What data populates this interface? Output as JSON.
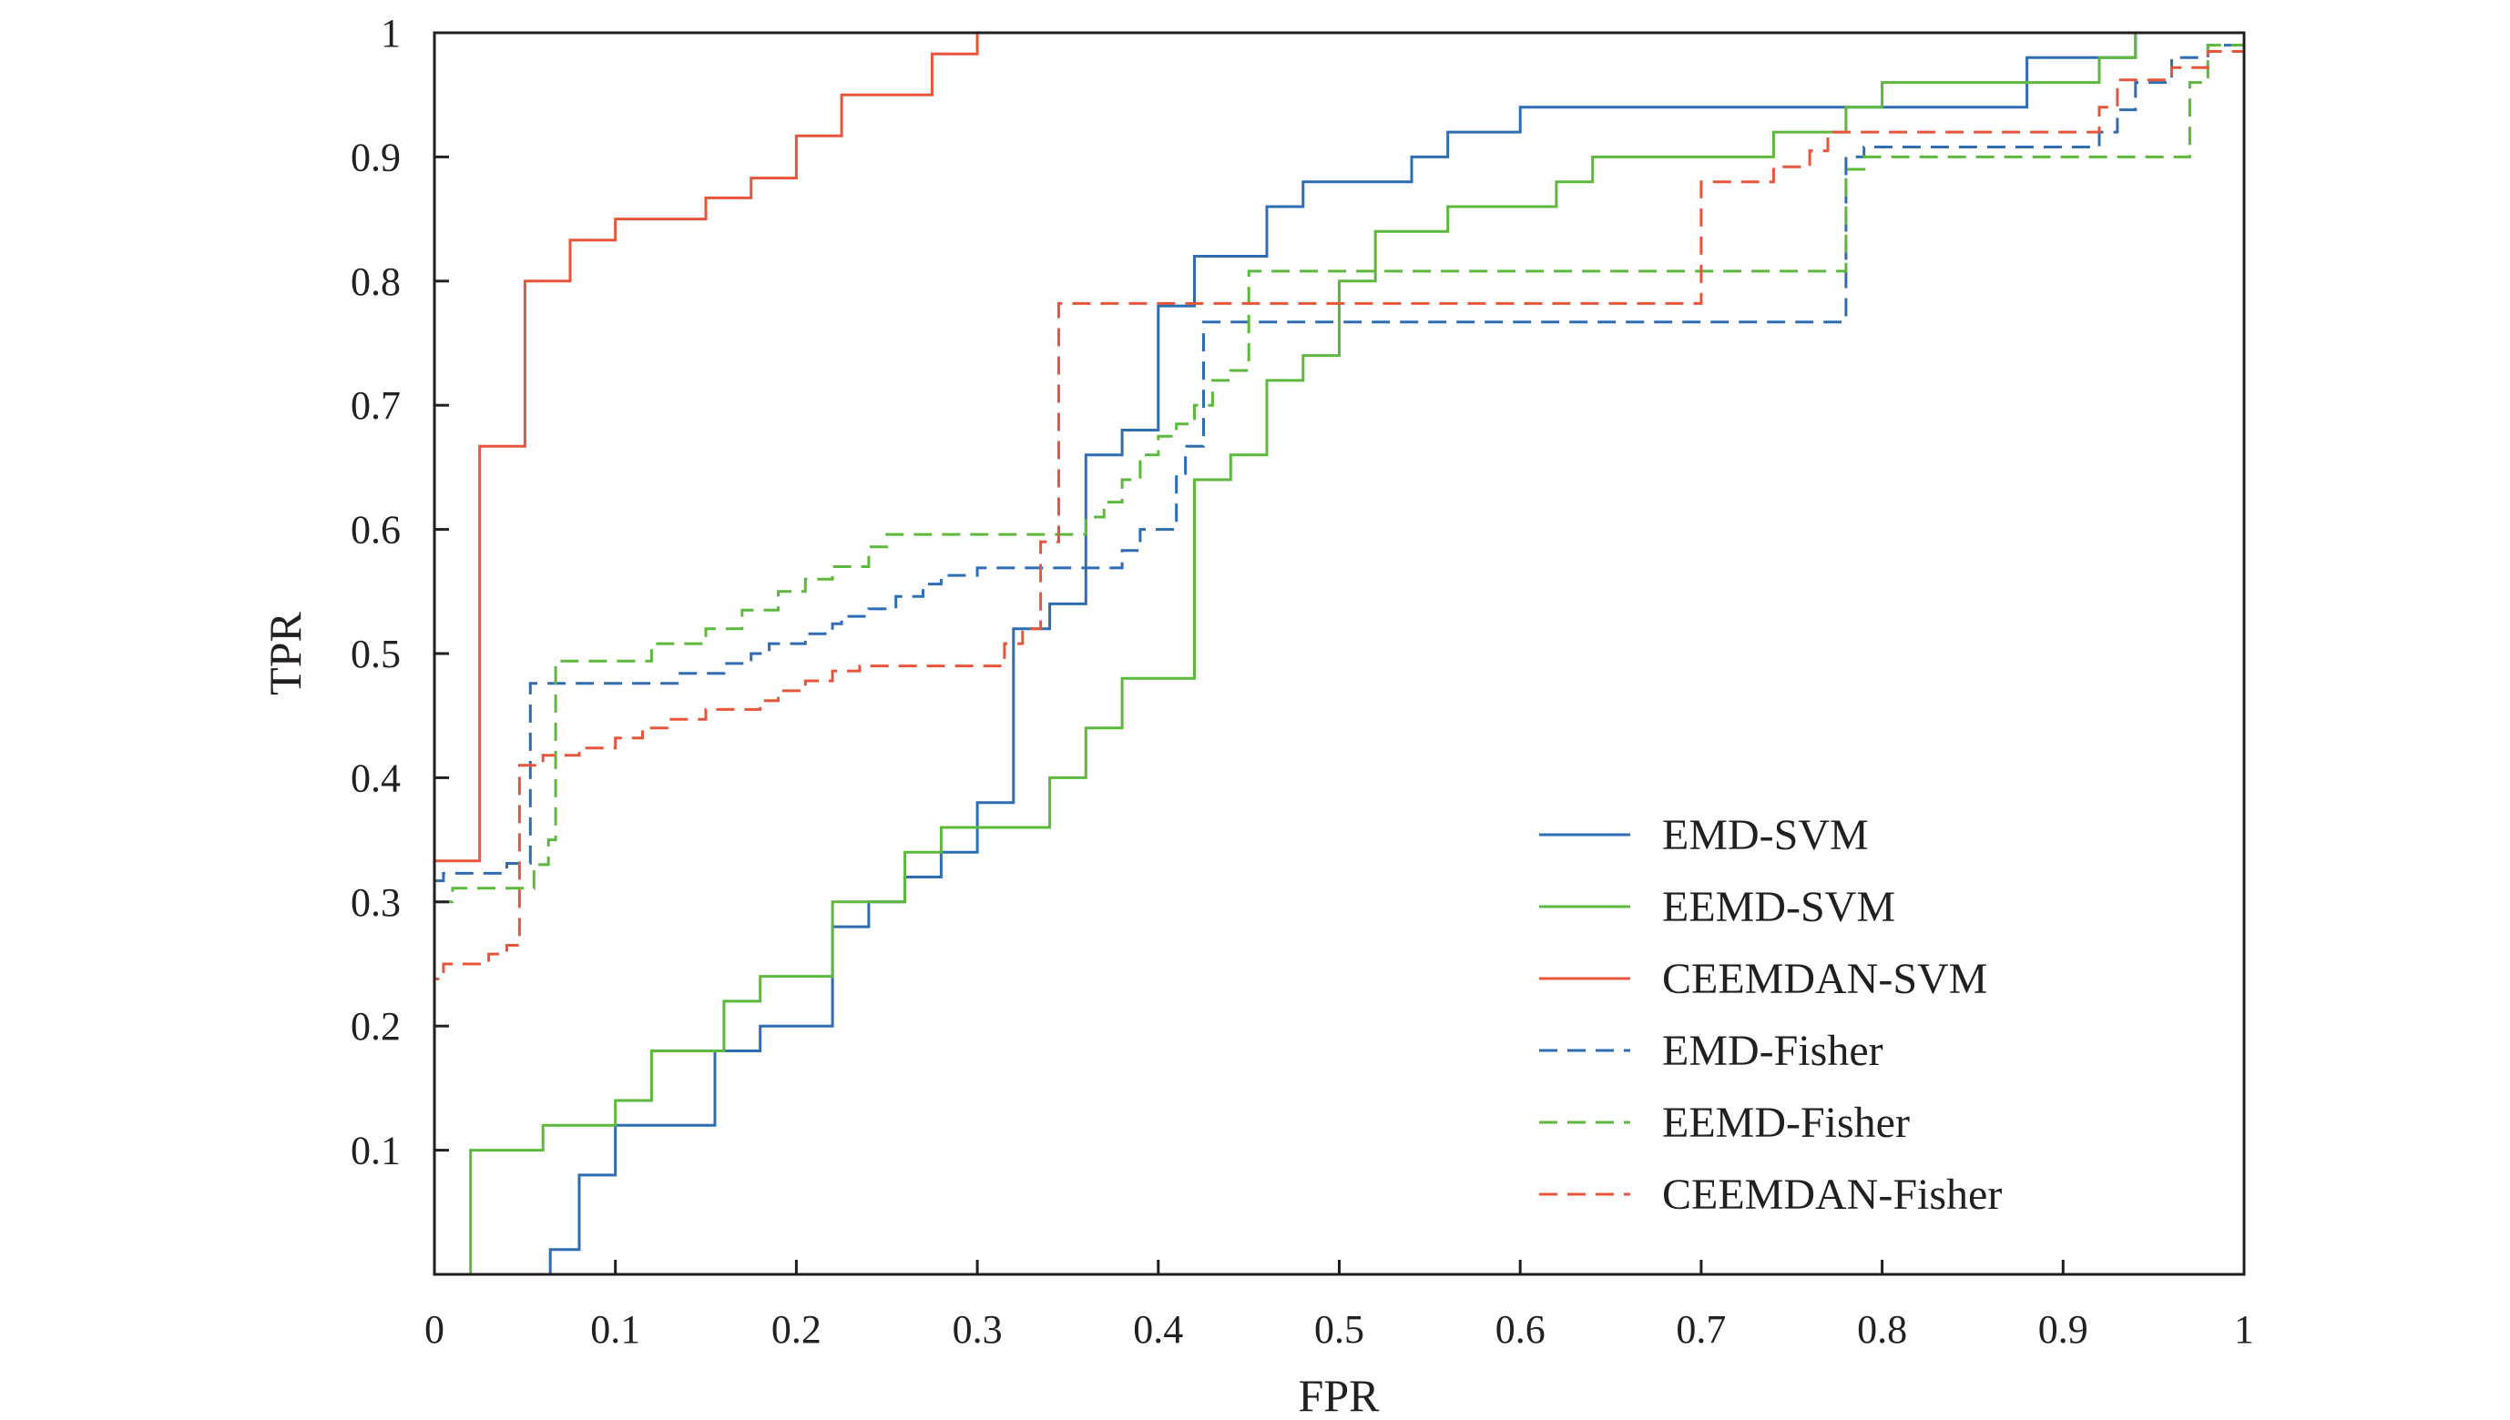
{
  "chart_data": {
    "type": "line",
    "title": "",
    "xlabel": "FPR",
    "ylabel": "TPR",
    "xlim": [
      0,
      1
    ],
    "ylim": [
      0,
      1
    ],
    "grid": false,
    "legend_position": "bottom-right",
    "x_ticks": [
      {
        "value": 0,
        "label": "0"
      },
      {
        "value": 0.1,
        "label": "0.1"
      },
      {
        "value": 0.2,
        "label": "0.2"
      },
      {
        "value": 0.3,
        "label": "0.3"
      },
      {
        "value": 0.4,
        "label": "0.4"
      },
      {
        "value": 0.5,
        "label": "0.5"
      },
      {
        "value": 0.6,
        "label": "0.6"
      },
      {
        "value": 0.7,
        "label": "0.7"
      },
      {
        "value": 0.8,
        "label": "0.8"
      },
      {
        "value": 0.9,
        "label": "0.9"
      },
      {
        "value": 1,
        "label": "1"
      }
    ],
    "y_ticks": [
      {
        "value": 0.1,
        "label": "0.1"
      },
      {
        "value": 0.2,
        "label": "0.2"
      },
      {
        "value": 0.3,
        "label": "0.3"
      },
      {
        "value": 0.4,
        "label": "0.4"
      },
      {
        "value": 0.5,
        "label": "0.5"
      },
      {
        "value": 0.6,
        "label": "0.6"
      },
      {
        "value": 0.7,
        "label": "0.7"
      },
      {
        "value": 0.8,
        "label": "0.8"
      },
      {
        "value": 0.9,
        "label": "0.9"
      },
      {
        "value": 1,
        "label": "1"
      }
    ],
    "series": [
      {
        "name": "EMD-SVM",
        "color": "#2e6db4",
        "dash": "solid",
        "points": [
          [
            0.02,
            0
          ],
          [
            0.064,
            0
          ],
          [
            0.064,
            0.02
          ],
          [
            0.08,
            0.02
          ],
          [
            0.08,
            0.08
          ],
          [
            0.1,
            0.08
          ],
          [
            0.1,
            0.12
          ],
          [
            0.155,
            0.12
          ],
          [
            0.155,
            0.18
          ],
          [
            0.18,
            0.18
          ],
          [
            0.18,
            0.2
          ],
          [
            0.22,
            0.2
          ],
          [
            0.22,
            0.28
          ],
          [
            0.24,
            0.28
          ],
          [
            0.24,
            0.3
          ],
          [
            0.26,
            0.3
          ],
          [
            0.26,
            0.32
          ],
          [
            0.28,
            0.32
          ],
          [
            0.28,
            0.34
          ],
          [
            0.3,
            0.34
          ],
          [
            0.3,
            0.38
          ],
          [
            0.32,
            0.38
          ],
          [
            0.32,
            0.52
          ],
          [
            0.34,
            0.52
          ],
          [
            0.34,
            0.54
          ],
          [
            0.36,
            0.54
          ],
          [
            0.36,
            0.66
          ],
          [
            0.38,
            0.66
          ],
          [
            0.38,
            0.68
          ],
          [
            0.4,
            0.68
          ],
          [
            0.4,
            0.78
          ],
          [
            0.42,
            0.78
          ],
          [
            0.42,
            0.82
          ],
          [
            0.46,
            0.82
          ],
          [
            0.46,
            0.86
          ],
          [
            0.48,
            0.86
          ],
          [
            0.48,
            0.88
          ],
          [
            0.54,
            0.88
          ],
          [
            0.54,
            0.9
          ],
          [
            0.56,
            0.9
          ],
          [
            0.56,
            0.92
          ],
          [
            0.6,
            0.92
          ],
          [
            0.6,
            0.94
          ],
          [
            0.88,
            0.94
          ],
          [
            0.88,
            0.98
          ],
          [
            0.94,
            0.98
          ],
          [
            0.94,
            1
          ],
          [
            1,
            1
          ]
        ]
      },
      {
        "name": "EEMD-SVM",
        "color": "#5cb93c",
        "dash": "solid",
        "points": [
          [
            0.02,
            0
          ],
          [
            0.02,
            0.1
          ],
          [
            0.06,
            0.1
          ],
          [
            0.06,
            0.12
          ],
          [
            0.1,
            0.12
          ],
          [
            0.1,
            0.14
          ],
          [
            0.12,
            0.14
          ],
          [
            0.12,
            0.18
          ],
          [
            0.16,
            0.18
          ],
          [
            0.16,
            0.22
          ],
          [
            0.18,
            0.22
          ],
          [
            0.18,
            0.24
          ],
          [
            0.22,
            0.24
          ],
          [
            0.22,
            0.3
          ],
          [
            0.26,
            0.3
          ],
          [
            0.26,
            0.34
          ],
          [
            0.28,
            0.34
          ],
          [
            0.28,
            0.36
          ],
          [
            0.34,
            0.36
          ],
          [
            0.34,
            0.4
          ],
          [
            0.36,
            0.4
          ],
          [
            0.36,
            0.44
          ],
          [
            0.38,
            0.44
          ],
          [
            0.38,
            0.48
          ],
          [
            0.42,
            0.48
          ],
          [
            0.42,
            0.64
          ],
          [
            0.44,
            0.64
          ],
          [
            0.44,
            0.66
          ],
          [
            0.46,
            0.66
          ],
          [
            0.46,
            0.72
          ],
          [
            0.48,
            0.72
          ],
          [
            0.48,
            0.74
          ],
          [
            0.5,
            0.74
          ],
          [
            0.5,
            0.8
          ],
          [
            0.52,
            0.8
          ],
          [
            0.52,
            0.84
          ],
          [
            0.56,
            0.84
          ],
          [
            0.56,
            0.86
          ],
          [
            0.62,
            0.86
          ],
          [
            0.62,
            0.88
          ],
          [
            0.64,
            0.88
          ],
          [
            0.64,
            0.9
          ],
          [
            0.74,
            0.9
          ],
          [
            0.74,
            0.92
          ],
          [
            0.78,
            0.92
          ],
          [
            0.78,
            0.94
          ],
          [
            0.8,
            0.94
          ],
          [
            0.8,
            0.96
          ],
          [
            0.92,
            0.96
          ],
          [
            0.92,
            0.98
          ],
          [
            0.94,
            0.98
          ],
          [
            0.94,
            1
          ],
          [
            1,
            1
          ]
        ]
      },
      {
        "name": "CEEMDAN-SVM",
        "color": "#e8553a",
        "dash": "solid",
        "points": [
          [
            0,
            0
          ],
          [
            0,
            0.333
          ],
          [
            0.025,
            0.333
          ],
          [
            0.025,
            0.667
          ],
          [
            0.05,
            0.667
          ],
          [
            0.05,
            0.8
          ],
          [
            0.075,
            0.8
          ],
          [
            0.075,
            0.833
          ],
          [
            0.1,
            0.833
          ],
          [
            0.1,
            0.85
          ],
          [
            0.15,
            0.85
          ],
          [
            0.15,
            0.867
          ],
          [
            0.175,
            0.867
          ],
          [
            0.175,
            0.883
          ],
          [
            0.2,
            0.883
          ],
          [
            0.2,
            0.917
          ],
          [
            0.225,
            0.917
          ],
          [
            0.225,
            0.95
          ],
          [
            0.275,
            0.95
          ],
          [
            0.275,
            0.983
          ],
          [
            0.3,
            0.983
          ],
          [
            0.3,
            1
          ],
          [
            1,
            1
          ]
        ]
      },
      {
        "name": "EMD-Fisher",
        "color": "#2e6db4",
        "dash": "dashed",
        "points": [
          [
            0,
            0.317
          ],
          [
            0.005,
            0.317
          ],
          [
            0.005,
            0.323
          ],
          [
            0.04,
            0.323
          ],
          [
            0.04,
            0.331
          ],
          [
            0.053,
            0.331
          ],
          [
            0.053,
            0.476
          ],
          [
            0.135,
            0.476
          ],
          [
            0.135,
            0.484
          ],
          [
            0.16,
            0.484
          ],
          [
            0.16,
            0.492
          ],
          [
            0.175,
            0.492
          ],
          [
            0.175,
            0.5
          ],
          [
            0.185,
            0.5
          ],
          [
            0.185,
            0.508
          ],
          [
            0.205,
            0.508
          ],
          [
            0.205,
            0.516
          ],
          [
            0.22,
            0.516
          ],
          [
            0.22,
            0.524
          ],
          [
            0.225,
            0.524
          ],
          [
            0.225,
            0.53
          ],
          [
            0.24,
            0.53
          ],
          [
            0.24,
            0.536
          ],
          [
            0.255,
            0.536
          ],
          [
            0.255,
            0.546
          ],
          [
            0.27,
            0.546
          ],
          [
            0.27,
            0.556
          ],
          [
            0.28,
            0.556
          ],
          [
            0.28,
            0.563
          ],
          [
            0.3,
            0.563
          ],
          [
            0.3,
            0.569
          ],
          [
            0.38,
            0.569
          ],
          [
            0.38,
            0.583
          ],
          [
            0.39,
            0.583
          ],
          [
            0.39,
            0.6
          ],
          [
            0.41,
            0.6
          ],
          [
            0.41,
            0.645
          ],
          [
            0.415,
            0.645
          ],
          [
            0.415,
            0.667
          ],
          [
            0.425,
            0.667
          ],
          [
            0.425,
            0.767
          ],
          [
            0.78,
            0.767
          ],
          [
            0.78,
            0.9
          ],
          [
            0.79,
            0.9
          ],
          [
            0.79,
            0.908
          ],
          [
            0.92,
            0.908
          ],
          [
            0.92,
            0.92
          ],
          [
            0.93,
            0.92
          ],
          [
            0.93,
            0.938
          ],
          [
            0.94,
            0.938
          ],
          [
            0.94,
            0.96
          ],
          [
            0.96,
            0.96
          ],
          [
            0.96,
            0.98
          ],
          [
            0.98,
            0.98
          ],
          [
            0.98,
            0.99
          ],
          [
            1,
            0.99
          ]
        ]
      },
      {
        "name": "EEMD-Fisher",
        "color": "#5cb93c",
        "dash": "dashed",
        "points": [
          [
            0,
            0.3
          ],
          [
            0.01,
            0.3
          ],
          [
            0.01,
            0.311
          ],
          [
            0.055,
            0.311
          ],
          [
            0.055,
            0.33
          ],
          [
            0.063,
            0.33
          ],
          [
            0.063,
            0.35
          ],
          [
            0.067,
            0.35
          ],
          [
            0.067,
            0.494
          ],
          [
            0.12,
            0.494
          ],
          [
            0.12,
            0.508
          ],
          [
            0.15,
            0.508
          ],
          [
            0.15,
            0.52
          ],
          [
            0.17,
            0.52
          ],
          [
            0.17,
            0.535
          ],
          [
            0.19,
            0.535
          ],
          [
            0.19,
            0.55
          ],
          [
            0.205,
            0.55
          ],
          [
            0.205,
            0.56
          ],
          [
            0.22,
            0.56
          ],
          [
            0.22,
            0.57
          ],
          [
            0.24,
            0.57
          ],
          [
            0.24,
            0.586
          ],
          [
            0.25,
            0.586
          ],
          [
            0.25,
            0.596
          ],
          [
            0.36,
            0.596
          ],
          [
            0.36,
            0.61
          ],
          [
            0.37,
            0.61
          ],
          [
            0.37,
            0.622
          ],
          [
            0.38,
            0.622
          ],
          [
            0.38,
            0.64
          ],
          [
            0.39,
            0.64
          ],
          [
            0.39,
            0.66
          ],
          [
            0.4,
            0.66
          ],
          [
            0.4,
            0.675
          ],
          [
            0.41,
            0.675
          ],
          [
            0.41,
            0.685
          ],
          [
            0.42,
            0.685
          ],
          [
            0.42,
            0.7
          ],
          [
            0.43,
            0.7
          ],
          [
            0.43,
            0.72
          ],
          [
            0.44,
            0.72
          ],
          [
            0.44,
            0.728
          ],
          [
            0.45,
            0.728
          ],
          [
            0.45,
            0.808
          ],
          [
            0.78,
            0.808
          ],
          [
            0.78,
            0.89
          ],
          [
            0.79,
            0.89
          ],
          [
            0.79,
            0.9
          ],
          [
            0.97,
            0.9
          ],
          [
            0.97,
            0.96
          ],
          [
            0.98,
            0.96
          ],
          [
            0.98,
            0.99
          ],
          [
            1,
            0.99
          ]
        ]
      },
      {
        "name": "CEEMDAN-Fisher",
        "color": "#e8553a",
        "dash": "dashed",
        "points": [
          [
            0,
            0
          ],
          [
            0,
            0.238
          ],
          [
            0.005,
            0.238
          ],
          [
            0.005,
            0.25
          ],
          [
            0.03,
            0.25
          ],
          [
            0.03,
            0.258
          ],
          [
            0.04,
            0.258
          ],
          [
            0.04,
            0.265
          ],
          [
            0.047,
            0.265
          ],
          [
            0.047,
            0.41
          ],
          [
            0.06,
            0.41
          ],
          [
            0.06,
            0.418
          ],
          [
            0.08,
            0.418
          ],
          [
            0.08,
            0.424
          ],
          [
            0.1,
            0.424
          ],
          [
            0.1,
            0.432
          ],
          [
            0.115,
            0.432
          ],
          [
            0.115,
            0.44
          ],
          [
            0.13,
            0.44
          ],
          [
            0.13,
            0.447
          ],
          [
            0.15,
            0.447
          ],
          [
            0.15,
            0.455
          ],
          [
            0.18,
            0.455
          ],
          [
            0.18,
            0.462
          ],
          [
            0.19,
            0.462
          ],
          [
            0.19,
            0.47
          ],
          [
            0.205,
            0.47
          ],
          [
            0.205,
            0.478
          ],
          [
            0.22,
            0.478
          ],
          [
            0.22,
            0.486
          ],
          [
            0.235,
            0.486
          ],
          [
            0.235,
            0.49
          ],
          [
            0.315,
            0.49
          ],
          [
            0.315,
            0.508
          ],
          [
            0.325,
            0.508
          ],
          [
            0.325,
            0.52
          ],
          [
            0.335,
            0.52
          ],
          [
            0.335,
            0.59
          ],
          [
            0.345,
            0.59
          ],
          [
            0.345,
            0.782
          ],
          [
            0.7,
            0.782
          ],
          [
            0.7,
            0.88
          ],
          [
            0.74,
            0.88
          ],
          [
            0.74,
            0.892
          ],
          [
            0.76,
            0.892
          ],
          [
            0.76,
            0.905
          ],
          [
            0.77,
            0.905
          ],
          [
            0.77,
            0.92
          ],
          [
            0.92,
            0.92
          ],
          [
            0.92,
            0.94
          ],
          [
            0.93,
            0.94
          ],
          [
            0.93,
            0.962
          ],
          [
            0.96,
            0.962
          ],
          [
            0.96,
            0.972
          ],
          [
            0.98,
            0.972
          ],
          [
            0.98,
            0.985
          ],
          [
            1,
            0.985
          ]
        ]
      }
    ]
  }
}
